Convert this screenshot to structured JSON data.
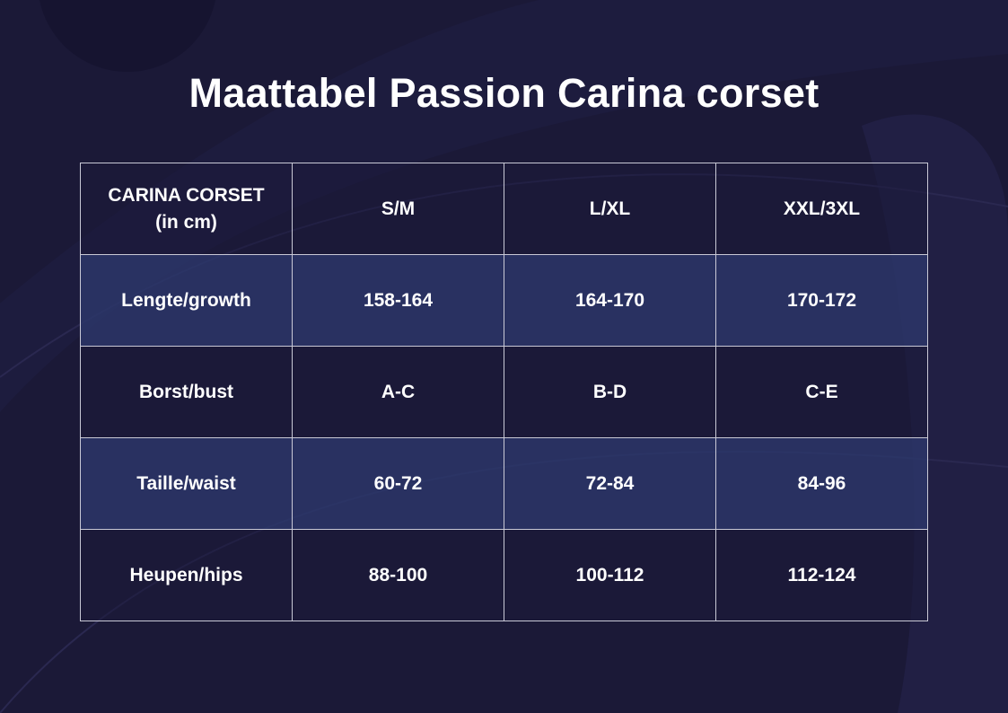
{
  "title": "Maattabel Passion Carina corset",
  "table": {
    "header_label": [
      "CARINA CORSET",
      "(in cm)"
    ],
    "columns": [
      "S/M",
      "L/XL",
      "XXL/3XL"
    ],
    "rows": [
      [
        "Lengte/growth",
        "158-164",
        "164-170",
        "170-172"
      ],
      [
        "Borst/bust",
        "A-C",
        "B-D",
        "C-E"
      ],
      [
        "Taille/waist",
        "60-72",
        "72-84",
        "84-96"
      ],
      [
        "Heupen/hips",
        "88-100",
        "100-112",
        "112-124"
      ]
    ]
  }
}
